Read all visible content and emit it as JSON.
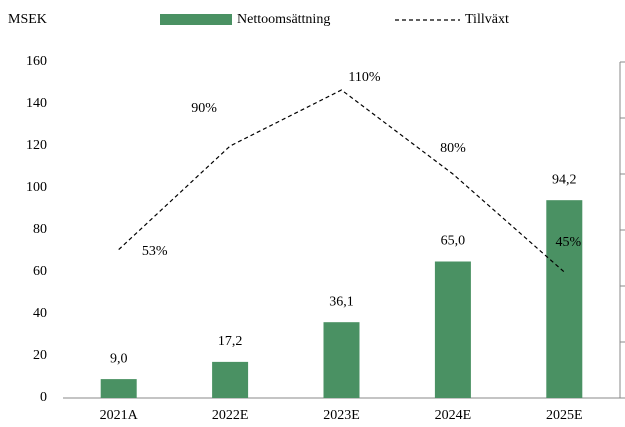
{
  "chart_data": {
    "type": "bar",
    "y_label": "MSEK",
    "categories": [
      "2021A",
      "2022E",
      "2023E",
      "2024E",
      "2025E"
    ],
    "series": [
      {
        "name": "Nettoomsättning",
        "color": "#4a9163",
        "values": [
          9.0,
          17.2,
          36.1,
          65.0,
          94.2
        ],
        "value_labels": [
          "9,0",
          "17,2",
          "36,1",
          "65,0",
          "94,2"
        ]
      },
      {
        "name": "Tillväxt",
        "type": "line",
        "color": "#000000",
        "axis": "y2",
        "values": [
          53,
          90,
          110,
          80,
          45
        ],
        "value_labels": [
          "53%",
          "90%",
          "110%",
          "80%",
          "45%"
        ]
      }
    ],
    "ylim": [
      0,
      160
    ],
    "yticks": [
      0,
      20,
      40,
      60,
      80,
      100,
      120,
      140,
      160
    ],
    "y2lim": [
      0,
      120
    ],
    "y2ticks": [
      0,
      20,
      40,
      60,
      80,
      100,
      120
    ],
    "grid": false
  }
}
